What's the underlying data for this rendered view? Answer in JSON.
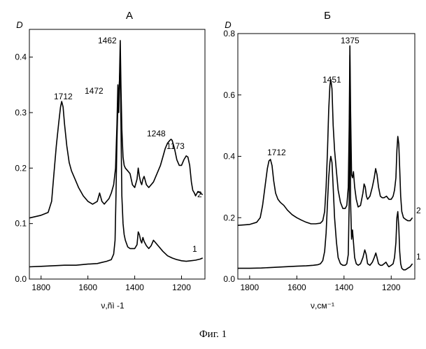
{
  "caption": "Фиг. 1",
  "chart_data": [
    {
      "type": "line",
      "title": "А",
      "xlabel": "ν,ñì -1",
      "ylabel": "D",
      "xlim": [
        1850,
        1100
      ],
      "ylim": [
        0,
        0.45
      ],
      "xticks": [
        1800,
        1600,
        1400,
        1200
      ],
      "xtick_labels": [
        "1800",
        "1600",
        "1400",
        "1200"
      ],
      "yticks": [
        0,
        0.1,
        0.2,
        0.3,
        0.4
      ],
      "ytick_labels": [
        "0.0",
        "0.1",
        "0.2",
        "0.3",
        "0.4"
      ],
      "series": [
        {
          "name": "2",
          "x": [
            1850,
            1800,
            1770,
            1755,
            1745,
            1735,
            1725,
            1717,
            1712,
            1706,
            1700,
            1690,
            1680,
            1670,
            1655,
            1640,
            1620,
            1600,
            1580,
            1560,
            1550,
            1540,
            1530,
            1520,
            1510,
            1500,
            1490,
            1482,
            1476,
            1472,
            1468,
            1465,
            1462,
            1459,
            1455,
            1450,
            1445,
            1440,
            1430,
            1420,
            1410,
            1400,
            1390,
            1385,
            1380,
            1375,
            1370,
            1365,
            1360,
            1350,
            1340,
            1320,
            1300,
            1290,
            1280,
            1270,
            1260,
            1250,
            1245,
            1240,
            1230,
            1220,
            1210,
            1200,
            1190,
            1180,
            1173,
            1165,
            1158,
            1152,
            1145,
            1140,
            1130,
            1120,
            1110
          ],
          "y": [
            0.11,
            0.115,
            0.12,
            0.14,
            0.19,
            0.24,
            0.28,
            0.31,
            0.32,
            0.31,
            0.28,
            0.24,
            0.21,
            0.195,
            0.18,
            0.165,
            0.15,
            0.14,
            0.135,
            0.14,
            0.155,
            0.14,
            0.135,
            0.14,
            0.145,
            0.155,
            0.17,
            0.2,
            0.28,
            0.35,
            0.3,
            0.36,
            0.43,
            0.35,
            0.27,
            0.22,
            0.205,
            0.2,
            0.195,
            0.19,
            0.17,
            0.165,
            0.18,
            0.2,
            0.185,
            0.175,
            0.17,
            0.18,
            0.185,
            0.17,
            0.165,
            0.175,
            0.195,
            0.205,
            0.22,
            0.235,
            0.245,
            0.25,
            0.252,
            0.25,
            0.235,
            0.215,
            0.205,
            0.205,
            0.215,
            0.222,
            0.22,
            0.205,
            0.175,
            0.16,
            0.155,
            0.15,
            0.158,
            0.155,
            0.152
          ]
        },
        {
          "name": "1",
          "x": [
            1850,
            1800,
            1700,
            1650,
            1600,
            1560,
            1540,
            1520,
            1500,
            1490,
            1484,
            1480,
            1476,
            1473,
            1470,
            1467,
            1462,
            1458,
            1455,
            1450,
            1445,
            1440,
            1430,
            1420,
            1410,
            1400,
            1390,
            1385,
            1380,
            1375,
            1370,
            1365,
            1360,
            1350,
            1340,
            1330,
            1320,
            1310,
            1300,
            1280,
            1260,
            1240,
            1220,
            1200,
            1180,
            1160,
            1140,
            1120,
            1110
          ],
          "y": [
            0.022,
            0.023,
            0.025,
            0.025,
            0.027,
            0.028,
            0.03,
            0.032,
            0.035,
            0.045,
            0.07,
            0.15,
            0.25,
            0.3,
            0.31,
            0.34,
            0.39,
            0.25,
            0.15,
            0.1,
            0.08,
            0.07,
            0.058,
            0.055,
            0.055,
            0.055,
            0.062,
            0.085,
            0.08,
            0.07,
            0.065,
            0.075,
            0.068,
            0.06,
            0.055,
            0.06,
            0.07,
            0.065,
            0.06,
            0.05,
            0.042,
            0.038,
            0.035,
            0.033,
            0.032,
            0.033,
            0.034,
            0.036,
            0.038
          ]
        }
      ],
      "annotations": [
        "1712",
        "1472",
        "1462",
        "1248",
        "1173"
      ]
    },
    {
      "type": "line",
      "title": "Б",
      "xlabel": "ν,см⁻¹",
      "ylabel": "D",
      "xlim": [
        1850,
        1100
      ],
      "ylim": [
        0,
        0.8
      ],
      "xticks": [
        1800,
        1600,
        1400,
        1200
      ],
      "xtick_labels": [
        "1800",
        "1600",
        "1400",
        "1200"
      ],
      "yticks": [
        0,
        0.2,
        0.4,
        0.6,
        0.8
      ],
      "ytick_labels": [
        "0.0",
        "0.2",
        "0.4",
        "0.6",
        "0.8"
      ],
      "series": [
        {
          "name": "2",
          "x": [
            1850,
            1800,
            1770,
            1755,
            1745,
            1735,
            1725,
            1718,
            1712,
            1705,
            1698,
            1690,
            1680,
            1670,
            1655,
            1640,
            1620,
            1600,
            1580,
            1560,
            1540,
            1520,
            1500,
            1490,
            1482,
            1476,
            1470,
            1465,
            1460,
            1456,
            1451,
            1446,
            1440,
            1432,
            1425,
            1415,
            1405,
            1395,
            1388,
            1382,
            1378,
            1375,
            1372,
            1368,
            1364,
            1360,
            1355,
            1348,
            1340,
            1330,
            1320,
            1315,
            1310,
            1305,
            1300,
            1290,
            1280,
            1272,
            1266,
            1260,
            1254,
            1246,
            1238,
            1230,
            1220,
            1210,
            1200,
            1192,
            1186,
            1180,
            1176,
            1172,
            1168,
            1164,
            1160,
            1155,
            1148,
            1140,
            1130,
            1120,
            1110
          ],
          "y": [
            0.175,
            0.178,
            0.185,
            0.2,
            0.24,
            0.3,
            0.36,
            0.385,
            0.39,
            0.37,
            0.32,
            0.28,
            0.26,
            0.25,
            0.24,
            0.225,
            0.21,
            0.2,
            0.192,
            0.185,
            0.18,
            0.18,
            0.182,
            0.19,
            0.22,
            0.3,
            0.42,
            0.55,
            0.63,
            0.65,
            0.62,
            0.5,
            0.42,
            0.35,
            0.29,
            0.25,
            0.23,
            0.23,
            0.24,
            0.3,
            0.5,
            0.76,
            0.55,
            0.34,
            0.33,
            0.35,
            0.3,
            0.26,
            0.235,
            0.24,
            0.28,
            0.31,
            0.3,
            0.27,
            0.26,
            0.27,
            0.3,
            0.33,
            0.36,
            0.34,
            0.3,
            0.27,
            0.265,
            0.265,
            0.27,
            0.26,
            0.26,
            0.27,
            0.29,
            0.33,
            0.42,
            0.465,
            0.44,
            0.36,
            0.27,
            0.22,
            0.2,
            0.195,
            0.19,
            0.19,
            0.2
          ]
        },
        {
          "name": "1",
          "x": [
            1850,
            1800,
            1750,
            1700,
            1650,
            1600,
            1560,
            1530,
            1510,
            1500,
            1490,
            1482,
            1476,
            1470,
            1465,
            1460,
            1456,
            1451,
            1446,
            1440,
            1432,
            1425,
            1415,
            1405,
            1395,
            1388,
            1382,
            1378,
            1375,
            1372,
            1368,
            1364,
            1360,
            1355,
            1348,
            1340,
            1330,
            1320,
            1312,
            1306,
            1300,
            1290,
            1280,
            1272,
            1265,
            1260,
            1254,
            1246,
            1238,
            1230,
            1222,
            1215,
            1210,
            1200,
            1192,
            1186,
            1180,
            1176,
            1172,
            1168,
            1164,
            1160,
            1155,
            1148,
            1140,
            1130,
            1120,
            1110
          ],
          "y": [
            0.035,
            0.035,
            0.036,
            0.038,
            0.04,
            0.042,
            0.043,
            0.045,
            0.047,
            0.05,
            0.06,
            0.09,
            0.15,
            0.25,
            0.33,
            0.38,
            0.4,
            0.38,
            0.3,
            0.2,
            0.12,
            0.07,
            0.05,
            0.045,
            0.045,
            0.05,
            0.08,
            0.25,
            0.73,
            0.25,
            0.13,
            0.16,
            0.12,
            0.07,
            0.05,
            0.045,
            0.05,
            0.07,
            0.095,
            0.08,
            0.05,
            0.045,
            0.055,
            0.07,
            0.085,
            0.07,
            0.05,
            0.045,
            0.045,
            0.05,
            0.055,
            0.045,
            0.04,
            0.045,
            0.05,
            0.07,
            0.12,
            0.2,
            0.22,
            0.17,
            0.09,
            0.05,
            0.035,
            0.03,
            0.03,
            0.035,
            0.04,
            0.05
          ]
        }
      ],
      "annotations": [
        "1712",
        "1451",
        "1375"
      ]
    }
  ]
}
